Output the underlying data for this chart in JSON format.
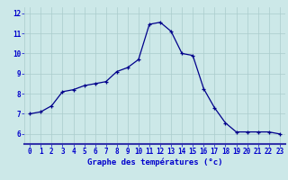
{
  "x": [
    0,
    1,
    2,
    3,
    4,
    5,
    6,
    7,
    8,
    9,
    10,
    11,
    12,
    13,
    14,
    15,
    16,
    17,
    18,
    19,
    20,
    21,
    22,
    23
  ],
  "y": [
    7.0,
    7.1,
    7.4,
    8.1,
    8.2,
    8.4,
    8.5,
    8.6,
    9.1,
    9.3,
    9.7,
    11.45,
    11.55,
    11.1,
    10.0,
    9.9,
    8.25,
    7.3,
    6.55,
    6.1,
    6.1,
    6.1,
    6.1,
    6.0
  ],
  "xlabel": "Graphe des températures (°c)",
  "ylabel_ticks": [
    6,
    7,
    8,
    9,
    10,
    11,
    12
  ],
  "ylim": [
    5.5,
    12.3
  ],
  "xlim": [
    -0.5,
    23.5
  ],
  "bg_color": "#cce8e8",
  "line_color": "#00008b",
  "marker_color": "#00008b",
  "grid_color": "#aacccc",
  "axis_label_color": "#0000cc",
  "tick_color": "#0000cc",
  "xlabel_fontsize": 6.5,
  "tick_fontsize": 5.5
}
